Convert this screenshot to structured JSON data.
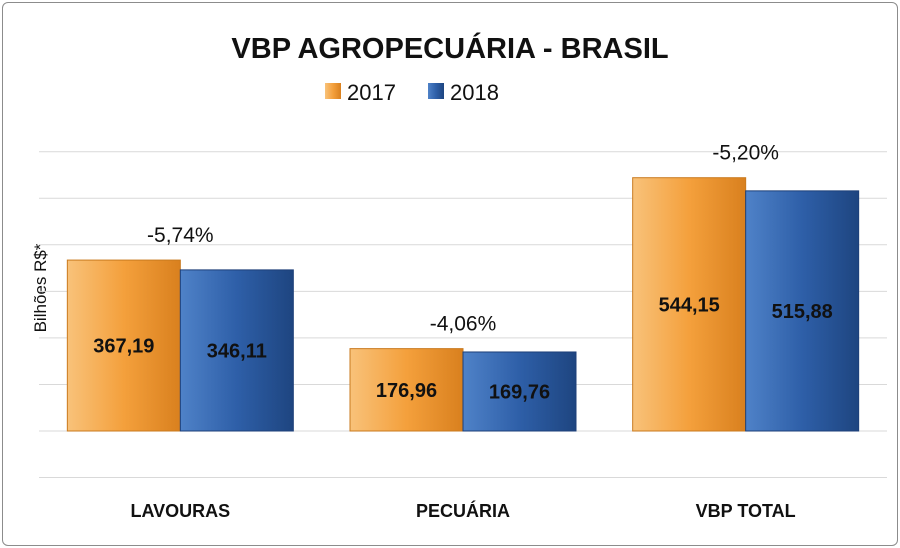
{
  "chart_data": {
    "type": "bar",
    "title": "VBP AGROPECUÁRIA - BRASIL",
    "ylabel": "Bilhões R$*",
    "xlabel": "",
    "categories": [
      "LAVOURAS",
      "PECUÁRIA",
      "VBP TOTAL"
    ],
    "series": [
      {
        "name": "2017",
        "color": "#f4a03c",
        "values": [
          367.19,
          176.96,
          544.15
        ],
        "labels": [
          "367,19",
          "176,96",
          "544,15"
        ]
      },
      {
        "name": "2018",
        "color": "#2e5fa8",
        "values": [
          346.11,
          169.76,
          515.88
        ],
        "labels": [
          "346,11",
          "169,76",
          "515,88"
        ]
      }
    ],
    "change_labels": [
      "-5,74%",
      "-4,06%",
      "-5,20%"
    ],
    "ylim": [
      -100,
      650
    ],
    "grid": true,
    "legend": "top-center",
    "bar_labels": "inside-center"
  }
}
